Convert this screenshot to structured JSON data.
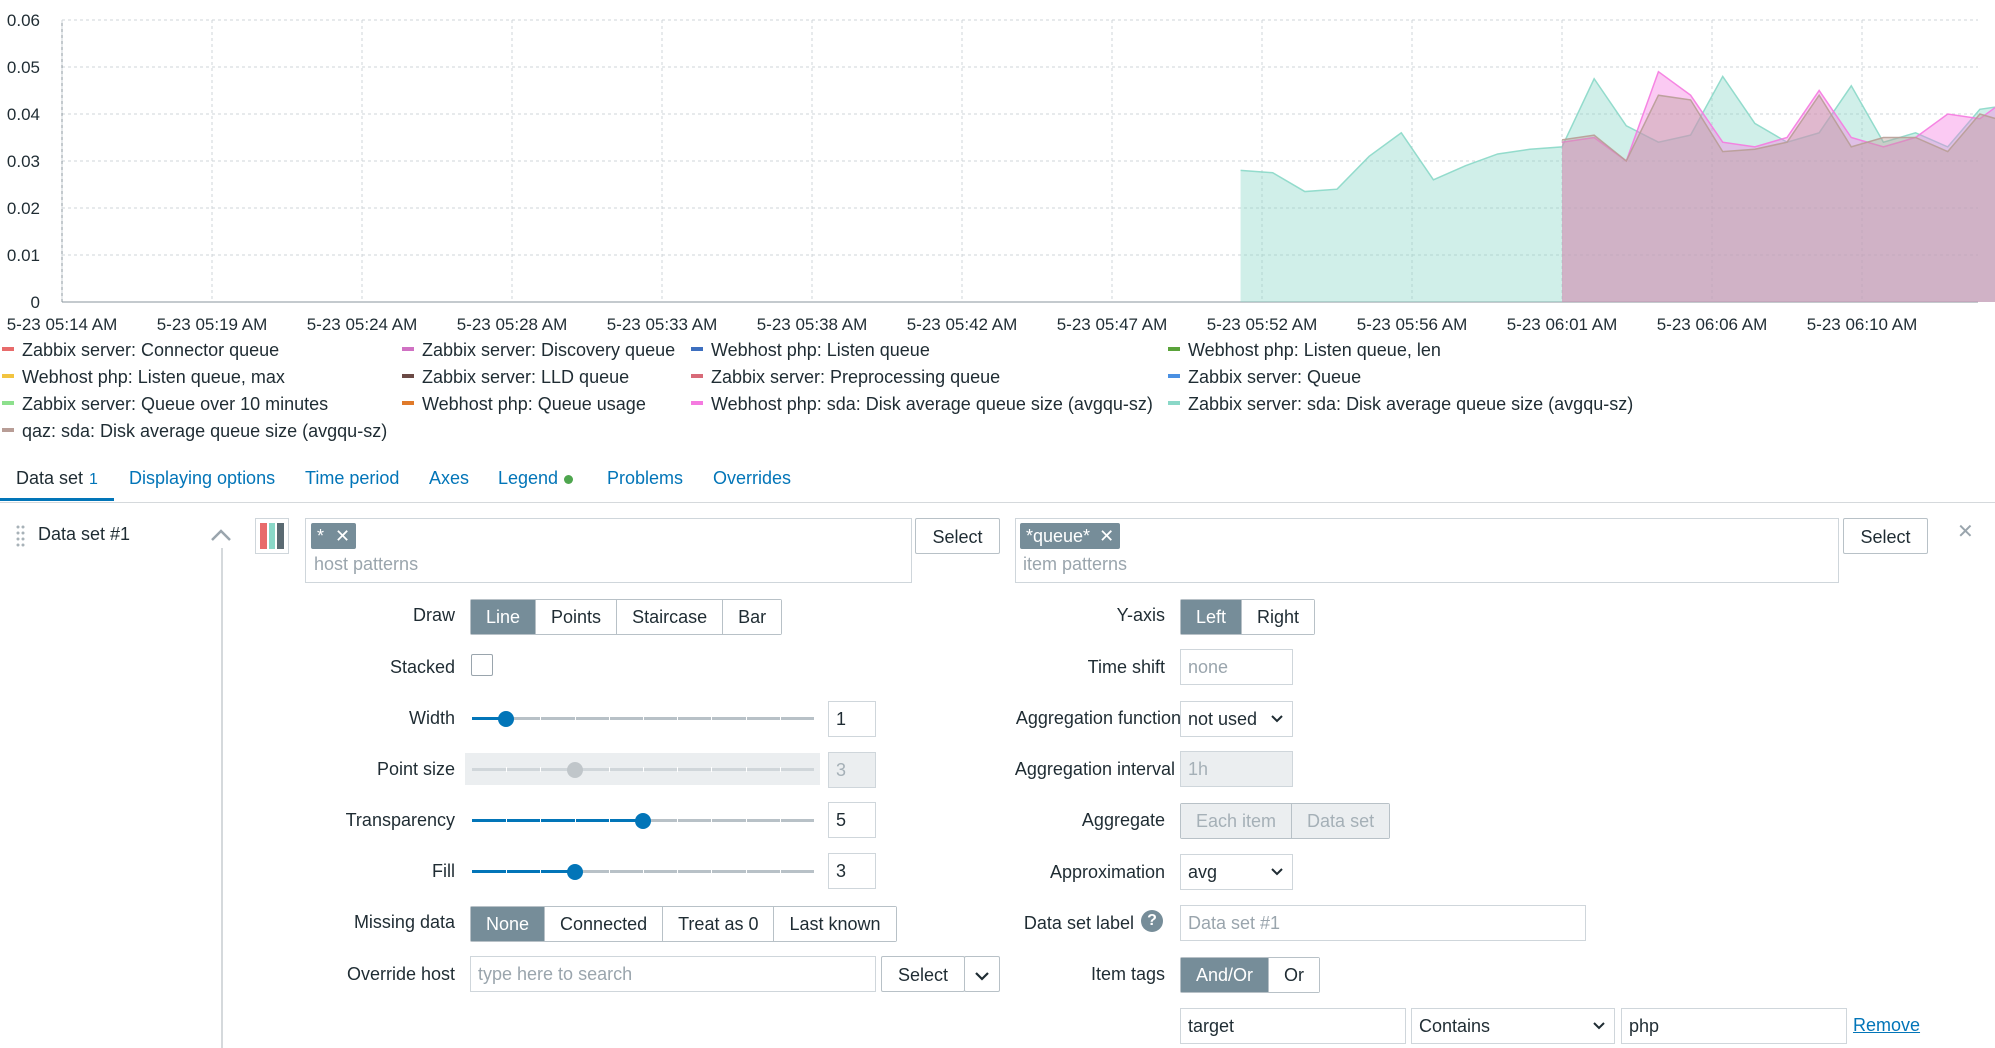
{
  "chart_data": {
    "type": "area",
    "y_ticks": [
      "0.06",
      "0.05",
      "0.04",
      "0.03",
      "0.02",
      "0.01",
      "0"
    ],
    "ylim": [
      0,
      0.06
    ],
    "x_ticks": [
      "5-23 05:14 AM",
      "5-23 05:19 AM",
      "5-23 05:24 AM",
      "5-23 05:28 AM",
      "5-23 05:33 AM",
      "5-23 05:38 AM",
      "5-23 05:42 AM",
      "5-23 05:47 AM",
      "5-23 05:52 AM",
      "5-23 05:56 AM",
      "5-23 06:01 AM",
      "5-23 06:06 AM",
      "5-23 06:10 AM"
    ],
    "grid": true,
    "series": [
      {
        "name": "Zabbix server: sda: Disk average queue size (avgqu-sz)",
        "color": "#8ad8c8",
        "x": [
          "05:51",
          "05:52",
          "05:53",
          "05:54",
          "05:55",
          "05:56",
          "05:57",
          "05:58",
          "05:59",
          "06:00",
          "06:01",
          "06:02",
          "06:03",
          "06:04",
          "06:05",
          "06:06",
          "06:07",
          "06:08",
          "06:09",
          "06:10",
          "06:11",
          "06:12",
          "06:13",
          "06:14",
          "06:15"
        ],
        "values": [
          0.028,
          0.0275,
          0.0235,
          0.024,
          0.031,
          0.036,
          0.026,
          0.029,
          0.0315,
          0.0325,
          0.033,
          0.0475,
          0.0375,
          0.034,
          0.0355,
          0.048,
          0.038,
          0.034,
          0.036,
          0.046,
          0.034,
          0.036,
          0.033,
          0.041,
          0.042
        ]
      },
      {
        "name": "Webhost php: sda: Disk average queue size (avgqu-sz)",
        "color": "#f57ae0",
        "x": [
          "06:01",
          "06:02",
          "06:03",
          "06:04",
          "06:05",
          "06:06",
          "06:07",
          "06:08",
          "06:09",
          "06:10",
          "06:11",
          "06:12",
          "06:13",
          "06:14",
          "06:15"
        ],
        "values": [
          0.034,
          0.035,
          0.03,
          0.049,
          0.044,
          0.034,
          0.033,
          0.035,
          0.045,
          0.035,
          0.033,
          0.035,
          0.04,
          0.039,
          0.044
        ]
      },
      {
        "name": "qaz: sda: Disk average queue size (avgqu-sz)",
        "color": "#b89d96",
        "x": [
          "06:01",
          "06:02",
          "06:03",
          "06:04",
          "06:05",
          "06:06",
          "06:07",
          "06:08",
          "06:09",
          "06:10",
          "06:11",
          "06:12",
          "06:13",
          "06:14",
          "06:15"
        ],
        "values": [
          0.0345,
          0.0355,
          0.03,
          0.044,
          0.043,
          0.032,
          0.0325,
          0.034,
          0.044,
          0.033,
          0.035,
          0.035,
          0.032,
          0.04,
          0.038
        ]
      }
    ],
    "legend": [
      {
        "label": "Zabbix server: Connector queue",
        "color": "#e86b6b"
      },
      {
        "label": "Zabbix server: Discovery queue",
        "color": "#d071c3"
      },
      {
        "label": "Webhost php: Listen queue",
        "color": "#3d6fbf"
      },
      {
        "label": "Webhost php: Listen queue, len",
        "color": "#5aa33a"
      },
      {
        "label": "Webhost php: Listen queue, max",
        "color": "#f2c440"
      },
      {
        "label": "Zabbix server: LLD queue",
        "color": "#6b4a45"
      },
      {
        "label": "Zabbix server: Preprocessing queue",
        "color": "#d86a78"
      },
      {
        "label": "Zabbix server: Queue",
        "color": "#4a90e2"
      },
      {
        "label": "Zabbix server: Queue over 10 minutes",
        "color": "#8de08d"
      },
      {
        "label": "Webhost php: Queue usage",
        "color": "#e07a2a"
      },
      {
        "label": "Webhost php: sda: Disk average queue size (avgqu-sz)",
        "color": "#f57ae0"
      },
      {
        "label": "Zabbix server: sda: Disk average queue size (avgqu-sz)",
        "color": "#8ad8c8"
      },
      {
        "label": "qaz: sda: Disk average queue size (avgqu-sz)",
        "color": "#b89d96"
      }
    ]
  },
  "tabs": {
    "dataset": "Data set",
    "dataset_count": "1",
    "display": "Displaying options",
    "time": "Time period",
    "axes": "Axes",
    "legend": "Legend",
    "problems": "Problems",
    "overrides": "Overrides"
  },
  "dataset": {
    "title": "Data set #1",
    "host_tag": "*",
    "host_placeholder": "host patterns",
    "item_tag": "*queue*",
    "item_placeholder": "item patterns",
    "select": "Select",
    "draw_label": "Draw",
    "draw_options": [
      "Line",
      "Points",
      "Staircase",
      "Bar"
    ],
    "stacked_label": "Stacked",
    "width_label": "Width",
    "width_value": "1",
    "pointsize_label": "Point size",
    "pointsize_value": "3",
    "transparency_label": "Transparency",
    "transparency_value": "5",
    "fill_label": "Fill",
    "fill_value": "3",
    "missing_label": "Missing data",
    "missing_options": [
      "None",
      "Connected",
      "Treat as 0",
      "Last known"
    ],
    "override_label": "Override host",
    "override_placeholder": "type here to search",
    "yaxis_label": "Y-axis",
    "yaxis_options": [
      "Left",
      "Right"
    ],
    "timeshift_label": "Time shift",
    "timeshift_placeholder": "none",
    "aggfunc_label": "Aggregation function",
    "aggfunc_value": "not used",
    "agginterval_label": "Aggregation interval",
    "agginterval_placeholder": "1h",
    "aggregate_label": "Aggregate",
    "aggregate_options": [
      "Each item",
      "Data set"
    ],
    "approx_label": "Approximation",
    "approx_value": "avg",
    "dslabel_label": "Data set label",
    "dslabel_placeholder": "Data set #1",
    "itemtags_label": "Item tags",
    "itemtags_options": [
      "And/Or",
      "Or"
    ],
    "tag_name": "target",
    "tag_operator": "Contains",
    "tag_value": "php",
    "remove": "Remove"
  }
}
